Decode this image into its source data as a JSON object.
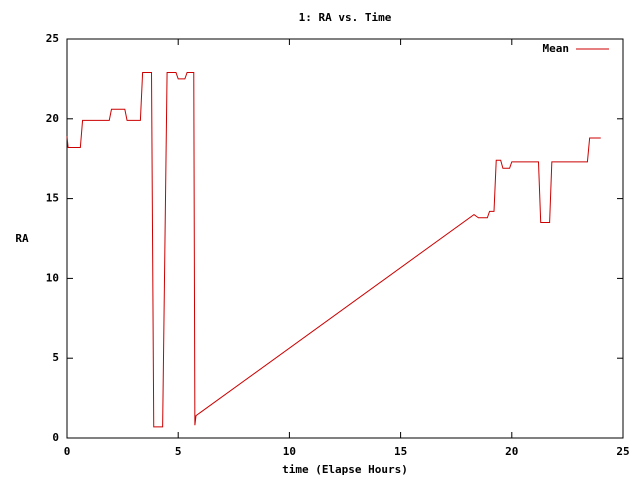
{
  "chart_data": {
    "type": "line",
    "title": "1: RA vs. Time",
    "x_label": "time (Elapse Hours)",
    "y_label": "RA",
    "xlim": [
      0,
      25
    ],
    "ylim": [
      0,
      25
    ],
    "xticks": [
      0,
      5,
      10,
      15,
      20,
      25
    ],
    "yticks": [
      0,
      5,
      10,
      15,
      20,
      25
    ],
    "grid": false,
    "legend": "top-right",
    "x": [
      0,
      0.05,
      0.6,
      0.7,
      1.9,
      2.0,
      2.6,
      2.7,
      3.3,
      3.4,
      3.8,
      3.9,
      4.3,
      4.5,
      4.9,
      5.0,
      5.3,
      5.4,
      5.7,
      5.75,
      5.8,
      6.0,
      18.3,
      18.5,
      18.9,
      19.0,
      19.2,
      19.3,
      19.5,
      19.6,
      19.9,
      20.0,
      21.2,
      21.3,
      21.7,
      21.8,
      23.4,
      23.5,
      24.0
    ],
    "series": [
      {
        "name": "Mean",
        "color": "#cc0000",
        "values": [
          18.9,
          18.2,
          18.2,
          19.9,
          19.9,
          20.6,
          20.6,
          19.9,
          19.9,
          22.9,
          22.9,
          0.7,
          0.7,
          22.9,
          22.9,
          22.5,
          22.5,
          22.9,
          22.9,
          0.8,
          1.4,
          1.6,
          14.0,
          13.8,
          13.8,
          14.2,
          14.2,
          17.4,
          17.4,
          16.9,
          16.9,
          17.3,
          17.3,
          13.5,
          13.5,
          17.3,
          17.3,
          18.8,
          18.8
        ]
      }
    ]
  }
}
